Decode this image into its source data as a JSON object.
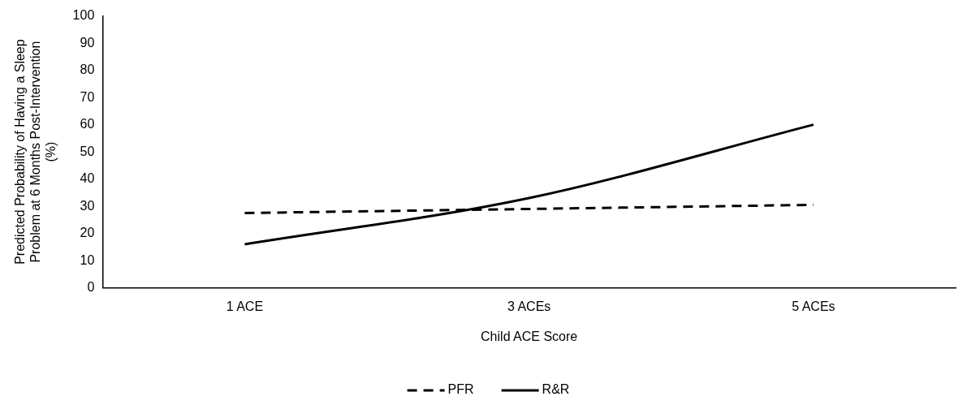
{
  "chart_data": {
    "type": "line",
    "xlabel": "Child ACE Score",
    "ylabel": "Predicted Probability of Having a Sleep Problem at 6 Months Post-Intervention (%)",
    "categories": [
      "1 ACE",
      "3 ACEs",
      "5 ACEs"
    ],
    "series": [
      {
        "name": "PFR",
        "color": "#000000",
        "values": [
          27.5,
          29,
          30.5
        ],
        "line_style": "dashed"
      },
      {
        "name": "R&R",
        "color": "#000000",
        "values": [
          16,
          33,
          60
        ],
        "line_style": "solid"
      }
    ],
    "ylim": [
      0,
      100
    ],
    "yticks": [
      0,
      10,
      20,
      30,
      40,
      50,
      60,
      70,
      80,
      90,
      100
    ],
    "grid": false,
    "legend": "bottom",
    "marker": "none"
  }
}
